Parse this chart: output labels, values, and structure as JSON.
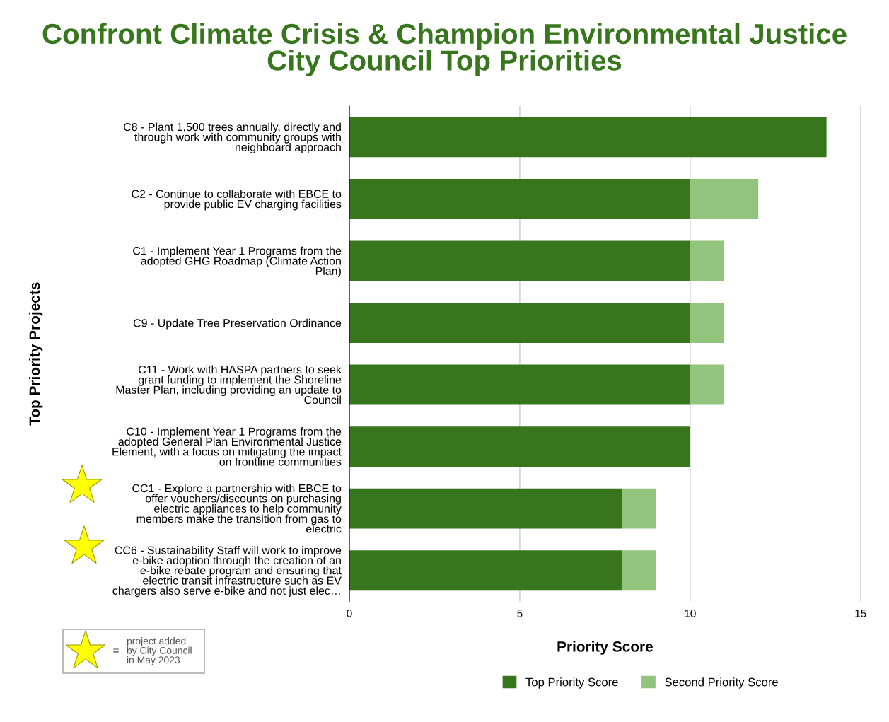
{
  "chart_data": {
    "type": "bar",
    "orientation": "horizontal",
    "stacked": true,
    "title": "Confront Climate Crisis & Champion Environmental Justice\nCity Council Top Priorities",
    "xlabel": "Priority Score",
    "ylabel": "Top Priority Projects",
    "categories": [
      "C8 - Plant 1,500 trees annually, directly and\nthrough work with community groups with\nneighboard approach",
      "C2 - Continue to collaborate with EBCE to\nprovide public EV charging facilities",
      "C1 - Implement Year 1 Programs from the\nadopted GHG Roadmap (Climate Action\nPlan)",
      "C9 - Update Tree Preservation Ordinance",
      "C11 - Work with HASPA partners to seek\ngrant funding to implement the Shoreline\nMaster Plan, including providing an update to\nCouncil",
      "C10 - Implement Year 1 Programs from the\nadopted General Plan Environmental Justice\nElement, with a focus on mitigating the impact\non frontline communities",
      "CC1 - Explore a partnership with EBCE to\noffer vouchers/discounts on purchasing\nelectric appliances to help community\nmembers make the transition from gas to\nelectric",
      "CC6 - Sustainability Staff will work to improve\ne-bike adoption through the creation of an\ne-bike rebate program and ensuring that\nelectric transit infrastructure such as EV\nchargers also serve e-bike and not just elec…"
    ],
    "series": [
      {
        "name": "Top Priority Score",
        "color": "#38761d",
        "values": [
          14,
          10,
          10,
          10,
          10,
          10,
          8,
          8
        ]
      },
      {
        "name": "Second Priority Score",
        "color": "#93c47d",
        "values": [
          0,
          2,
          1,
          1,
          1,
          0,
          1,
          1
        ]
      }
    ],
    "xlim": [
      0,
      15
    ],
    "xticks": [
      0,
      5,
      10,
      15
    ],
    "grid": "x",
    "legend": "bottom",
    "annotations": [
      "=",
      "project added\nby City Council\nin May 2023"
    ]
  }
}
